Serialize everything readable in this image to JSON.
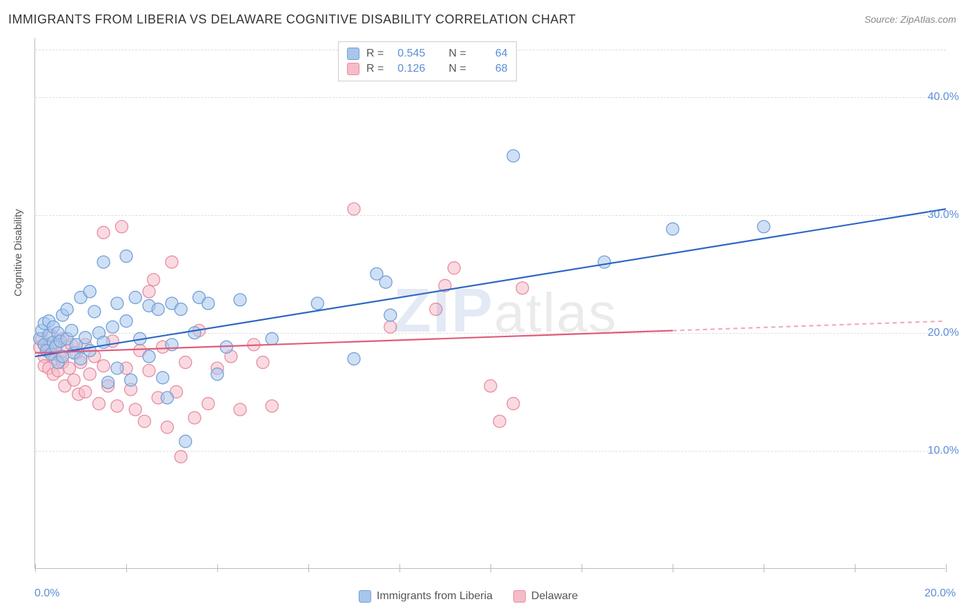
{
  "title": "IMMIGRANTS FROM LIBERIA VS DELAWARE COGNITIVE DISABILITY CORRELATION CHART",
  "source": "Source: ZipAtlas.com",
  "watermark": {
    "z": "ZIP",
    "rest": "atlas"
  },
  "y_axis_label": "Cognitive Disability",
  "chart": {
    "type": "scatter",
    "xlim": [
      0,
      20
    ],
    "ylim": [
      0,
      45
    ],
    "x_ticks": [
      0,
      2,
      4,
      6,
      8,
      10,
      12,
      14,
      16,
      18,
      20
    ],
    "x_tick_labels": {
      "0": "0.0%",
      "20": "20.0%"
    },
    "y_gridlines": [
      10,
      20,
      30,
      40,
      44
    ],
    "y_tick_labels": {
      "10": "10.0%",
      "20": "20.0%",
      "30": "30.0%",
      "40": "40.0%"
    },
    "background_color": "#ffffff",
    "grid_color": "#dddddd",
    "axis_color": "#bbbbbb",
    "marker_radius": 9,
    "marker_opacity": 0.55,
    "line_width": 2.2
  },
  "series": [
    {
      "name": "Immigrants from Liberia",
      "color_fill": "#a8c6ec",
      "color_stroke": "#6f9fd8",
      "line_color": "#2b66c4",
      "R": "0.545",
      "N": "64",
      "trend": {
        "x1": 0,
        "y1": 18.0,
        "x2": 20,
        "y2": 30.5,
        "solid_until_x": 20
      },
      "points": [
        [
          0.1,
          19.5
        ],
        [
          0.15,
          20.2
        ],
        [
          0.2,
          19.0
        ],
        [
          0.2,
          20.8
        ],
        [
          0.25,
          18.5
        ],
        [
          0.3,
          19.8
        ],
        [
          0.3,
          21.0
        ],
        [
          0.35,
          18.2
        ],
        [
          0.4,
          20.5
        ],
        [
          0.4,
          19.2
        ],
        [
          0.45,
          18.8
        ],
        [
          0.5,
          20.0
        ],
        [
          0.5,
          17.5
        ],
        [
          0.55,
          19.3
        ],
        [
          0.6,
          21.5
        ],
        [
          0.6,
          18.0
        ],
        [
          0.7,
          22.0
        ],
        [
          0.7,
          19.5
        ],
        [
          0.8,
          20.2
        ],
        [
          0.85,
          18.3
        ],
        [
          0.9,
          19.0
        ],
        [
          1.0,
          23.0
        ],
        [
          1.0,
          17.8
        ],
        [
          1.1,
          19.6
        ],
        [
          1.2,
          23.5
        ],
        [
          1.2,
          18.5
        ],
        [
          1.3,
          21.8
        ],
        [
          1.4,
          20.0
        ],
        [
          1.5,
          26.0
        ],
        [
          1.5,
          19.2
        ],
        [
          1.6,
          15.8
        ],
        [
          1.7,
          20.5
        ],
        [
          1.8,
          22.5
        ],
        [
          1.8,
          17.0
        ],
        [
          2.0,
          26.5
        ],
        [
          2.0,
          21.0
        ],
        [
          2.1,
          16.0
        ],
        [
          2.2,
          23.0
        ],
        [
          2.3,
          19.5
        ],
        [
          2.5,
          22.3
        ],
        [
          2.5,
          18.0
        ],
        [
          2.7,
          22.0
        ],
        [
          2.8,
          16.2
        ],
        [
          2.9,
          14.5
        ],
        [
          3.0,
          22.5
        ],
        [
          3.0,
          19.0
        ],
        [
          3.2,
          22.0
        ],
        [
          3.3,
          10.8
        ],
        [
          3.5,
          20.0
        ],
        [
          3.6,
          23.0
        ],
        [
          3.8,
          22.5
        ],
        [
          4.0,
          16.5
        ],
        [
          4.2,
          18.8
        ],
        [
          4.5,
          22.8
        ],
        [
          5.2,
          19.5
        ],
        [
          6.2,
          22.5
        ],
        [
          7.0,
          17.8
        ],
        [
          7.5,
          25.0
        ],
        [
          7.7,
          24.3
        ],
        [
          7.8,
          21.5
        ],
        [
          10.5,
          35.0
        ],
        [
          12.5,
          26.0
        ],
        [
          14.0,
          28.8
        ],
        [
          16.0,
          29.0
        ]
      ]
    },
    {
      "name": "Delaware",
      "color_fill": "#f5bcc8",
      "color_stroke": "#e88ba0",
      "line_color": "#e05a7a",
      "R": "0.126",
      "N": "68",
      "trend": {
        "x1": 0,
        "y1": 18.3,
        "x2": 20,
        "y2": 21.0,
        "solid_until_x": 14
      },
      "points": [
        [
          0.1,
          18.8
        ],
        [
          0.15,
          19.5
        ],
        [
          0.2,
          18.0
        ],
        [
          0.2,
          17.2
        ],
        [
          0.25,
          19.0
        ],
        [
          0.3,
          18.5
        ],
        [
          0.3,
          17.0
        ],
        [
          0.35,
          19.8
        ],
        [
          0.4,
          16.5
        ],
        [
          0.4,
          18.2
        ],
        [
          0.45,
          17.8
        ],
        [
          0.5,
          19.2
        ],
        [
          0.5,
          16.8
        ],
        [
          0.55,
          18.0
        ],
        [
          0.6,
          17.5
        ],
        [
          0.6,
          19.5
        ],
        [
          0.65,
          15.5
        ],
        [
          0.7,
          18.8
        ],
        [
          0.75,
          17.0
        ],
        [
          0.8,
          19.0
        ],
        [
          0.85,
          16.0
        ],
        [
          0.9,
          18.3
        ],
        [
          0.95,
          14.8
        ],
        [
          1.0,
          17.5
        ],
        [
          1.1,
          15.0
        ],
        [
          1.1,
          19.0
        ],
        [
          1.2,
          16.5
        ],
        [
          1.3,
          18.0
        ],
        [
          1.4,
          14.0
        ],
        [
          1.5,
          28.5
        ],
        [
          1.5,
          17.2
        ],
        [
          1.6,
          15.5
        ],
        [
          1.7,
          19.3
        ],
        [
          1.8,
          13.8
        ],
        [
          1.9,
          29.0
        ],
        [
          2.0,
          17.0
        ],
        [
          2.1,
          15.2
        ],
        [
          2.2,
          13.5
        ],
        [
          2.3,
          18.5
        ],
        [
          2.4,
          12.5
        ],
        [
          2.5,
          23.5
        ],
        [
          2.5,
          16.8
        ],
        [
          2.6,
          24.5
        ],
        [
          2.7,
          14.5
        ],
        [
          2.8,
          18.8
        ],
        [
          2.9,
          12.0
        ],
        [
          3.0,
          26.0
        ],
        [
          3.1,
          15.0
        ],
        [
          3.2,
          9.5
        ],
        [
          3.3,
          17.5
        ],
        [
          3.5,
          12.8
        ],
        [
          3.6,
          20.2
        ],
        [
          3.8,
          14.0
        ],
        [
          4.0,
          17.0
        ],
        [
          4.3,
          18.0
        ],
        [
          4.5,
          13.5
        ],
        [
          4.8,
          19.0
        ],
        [
          5.0,
          17.5
        ],
        [
          5.2,
          13.8
        ],
        [
          7.0,
          30.5
        ],
        [
          7.8,
          20.5
        ],
        [
          8.8,
          22.0
        ],
        [
          9.0,
          24.0
        ],
        [
          9.2,
          25.5
        ],
        [
          10.0,
          15.5
        ],
        [
          10.2,
          12.5
        ],
        [
          10.5,
          14.0
        ],
        [
          10.7,
          23.8
        ]
      ]
    }
  ],
  "legend_labels": {
    "R": "R =",
    "N": "N ="
  }
}
